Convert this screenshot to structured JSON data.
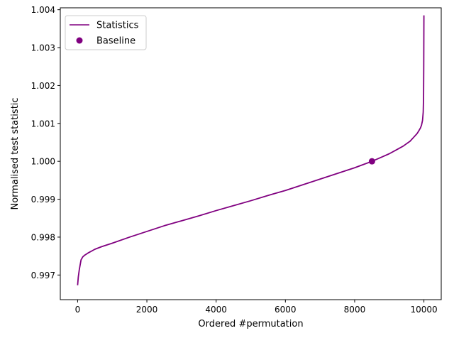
{
  "chart_data": {
    "type": "line",
    "title": "",
    "xlabel": "Ordered #permutation",
    "ylabel": "Normalised test statistic",
    "xlim": [
      -500,
      10500
    ],
    "ylim": [
      0.99635,
      1.00405
    ],
    "xticks": [
      0,
      2000,
      4000,
      6000,
      8000,
      10000
    ],
    "yticks": [
      0.997,
      0.998,
      0.999,
      1.0,
      1.001,
      1.002,
      1.003,
      1.004
    ],
    "ytick_labels": [
      "0.997",
      "0.998",
      "0.999",
      "1.000",
      "1.001",
      "1.002",
      "1.003",
      "1.004"
    ],
    "grid": false,
    "legend_position": "top-left",
    "series": [
      {
        "name": "Statistics",
        "color": "#800080",
        "kind": "line",
        "x": [
          0,
          20,
          50,
          80,
          100,
          150,
          200,
          300,
          500,
          700,
          1000,
          1500,
          2000,
          2500,
          3000,
          3500,
          4000,
          4500,
          5000,
          5500,
          6000,
          6500,
          7000,
          7500,
          8000,
          8500,
          8800,
          9000,
          9200,
          9400,
          9600,
          9700,
          9800,
          9850,
          9900,
          9930,
          9960,
          9980,
          9990,
          9995,
          10000
        ],
        "y": [
          0.99673,
          0.99695,
          0.99715,
          0.9973,
          0.9974,
          0.99748,
          0.99752,
          0.99758,
          0.99768,
          0.99775,
          0.99784,
          0.998,
          0.99815,
          0.9983,
          0.99843,
          0.99856,
          0.9987,
          0.99883,
          0.99896,
          0.9991,
          0.99923,
          0.99938,
          0.99953,
          0.99968,
          0.99983,
          1.0,
          1.00012,
          1.0002,
          1.0003,
          1.0004,
          1.00053,
          1.00063,
          1.00073,
          1.0008,
          1.00088,
          1.00095,
          1.00108,
          1.0013,
          1.0017,
          1.0025,
          1.00385
        ]
      },
      {
        "name": "Baseline",
        "color": "#800080",
        "kind": "point",
        "x": [
          8500
        ],
        "y": [
          1.0
        ]
      }
    ]
  }
}
